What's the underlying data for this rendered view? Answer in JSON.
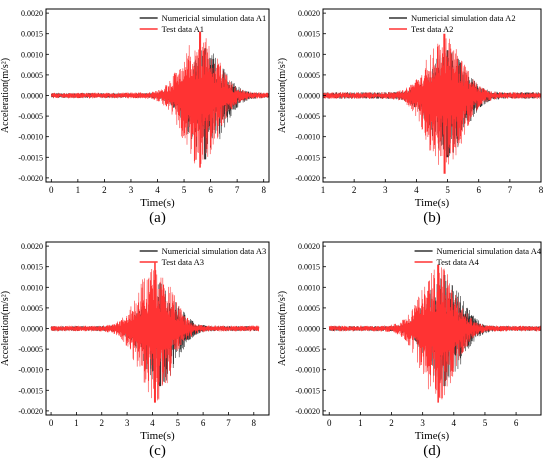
{
  "chart_data": [
    {
      "panel_label": "(a)",
      "type": "line",
      "xlabel": "Time(s)",
      "ylabel": "Acceleration(m/s²)",
      "xlim": [
        -0.2,
        8.2
      ],
      "ylim": [
        -0.0021,
        0.0021
      ],
      "xticks": [
        0,
        1,
        2,
        3,
        4,
        5,
        6,
        7,
        8
      ],
      "yticks": [
        -0.002,
        -0.0015,
        -0.001,
        -0.0005,
        0.0,
        0.0005,
        0.001,
        0.0015,
        0.002
      ],
      "ytick_labels": [
        "-0.0020",
        "-0.0015",
        "-0.0010",
        "-0.0005",
        "0.0000",
        "0.0005",
        "0.0010",
        "0.0015",
        "0.0020"
      ],
      "legend_position": "top-center",
      "series": [
        {
          "name": "Numericial simulation data A1",
          "color": "#333333",
          "t_start": 0,
          "t_end": 8.2,
          "peak_time": 5.8,
          "max": 0.00115,
          "min": -0.00155,
          "base_amplitude": 6e-05
        },
        {
          "name": "Test data A1",
          "color": "#ff3333",
          "t_start": 0,
          "t_end": 8.2,
          "peak_time": 5.6,
          "max": 0.00155,
          "min": -0.00175,
          "base_amplitude": 7e-05
        }
      ]
    },
    {
      "panel_label": "(b)",
      "type": "line",
      "xlabel": "Time(s)",
      "ylabel": "Acceleration(m/s²)",
      "xlim": [
        1,
        8
      ],
      "ylim": [
        -0.0021,
        0.0021
      ],
      "xticks": [
        1,
        2,
        3,
        4,
        5,
        6,
        7,
        8
      ],
      "yticks": [
        -0.002,
        -0.0015,
        -0.001,
        -0.0005,
        0.0,
        0.0005,
        0.001,
        0.0015,
        0.002
      ],
      "ytick_labels": [
        "-0.0020",
        "-0.0015",
        "-0.0010",
        "-0.0005",
        "0.0000",
        "0.0005",
        "0.0010",
        "0.0015",
        "0.0020"
      ],
      "legend_position": "top-right",
      "series": [
        {
          "name": "Numericial simulation data A2",
          "color": "#333333",
          "t_start": 1,
          "t_end": 8,
          "peak_time": 5.0,
          "max": 0.0011,
          "min": -0.0015,
          "base_amplitude": 8e-05
        },
        {
          "name": "Test data A2",
          "color": "#ff3333",
          "t_start": 1,
          "t_end": 8,
          "peak_time": 4.9,
          "max": 0.0015,
          "min": -0.0019,
          "base_amplitude": 8e-05
        }
      ]
    },
    {
      "panel_label": "(c)",
      "type": "line",
      "xlabel": "Time(s)",
      "ylabel": "Acceleration(m/s²)",
      "xlim": [
        -0.2,
        8.6
      ],
      "ylim": [
        -0.0021,
        0.0021
      ],
      "xticks": [
        0,
        1,
        2,
        3,
        4,
        5,
        6,
        7,
        8
      ],
      "yticks": [
        -0.002,
        -0.0015,
        -0.001,
        -0.0005,
        0.0,
        0.0005,
        0.001,
        0.0015,
        0.002
      ],
      "ytick_labels": [
        "-0.0020",
        "-0.0015",
        "-0.0010",
        "-0.0005",
        "0.0000",
        "0.0005",
        "0.0010",
        "0.0015",
        "0.0020"
      ],
      "legend_position": "top-center",
      "series": [
        {
          "name": "Numericial simulation data A3",
          "color": "#333333",
          "t_start": 0,
          "t_end": 8.2,
          "peak_time": 4.3,
          "max": 0.0011,
          "min": -0.0014,
          "base_amplitude": 6e-05
        },
        {
          "name": "Test data A3",
          "color": "#ff3333",
          "t_start": 0,
          "t_end": 8.2,
          "peak_time": 4.1,
          "max": 0.0016,
          "min": -0.0018,
          "base_amplitude": 7e-05
        }
      ]
    },
    {
      "panel_label": "(d)",
      "type": "line",
      "xlabel": "Time(s)",
      "ylabel": "Acceleration(m/s²)",
      "xlim": [
        -0.2,
        6.8
      ],
      "ylim": [
        -0.0021,
        0.0021
      ],
      "xticks": [
        0,
        1,
        2,
        3,
        4,
        5,
        6
      ],
      "yticks": [
        -0.002,
        -0.0015,
        -0.001,
        -0.0005,
        0.0,
        0.0005,
        0.001,
        0.0015,
        0.002
      ],
      "ytick_labels": [
        "-0.0020",
        "-0.0015",
        "-0.0010",
        "-0.0005",
        "0.0000",
        "0.0005",
        "0.0010",
        "0.0015",
        "0.0020"
      ],
      "legend_position": "top-center",
      "series": [
        {
          "name": "Numericial simulation data A4",
          "color": "#333333",
          "t_start": 0,
          "t_end": 6.8,
          "peak_time": 3.7,
          "max": 0.0013,
          "min": -0.0014,
          "base_amplitude": 6e-05
        },
        {
          "name": "Test data A4",
          "color": "#ff3333",
          "t_start": 0,
          "t_end": 6.8,
          "peak_time": 3.5,
          "max": 0.00155,
          "min": -0.0018,
          "base_amplitude": 7e-05
        }
      ]
    }
  ]
}
